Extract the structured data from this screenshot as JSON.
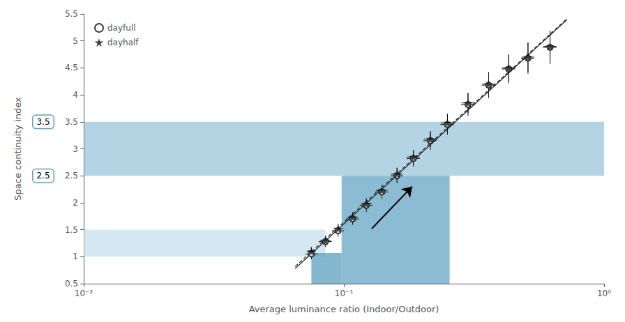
{
  "chart_data": {
    "type": "scatter",
    "xlabel": "Average luminance ratio (Indoor/Outdoor)",
    "ylabel": "Space continuity index",
    "log": "x",
    "xlim": [
      0.01,
      1
    ],
    "xticks": [
      {
        "value": 0.01,
        "label": "10⁻²"
      },
      {
        "value": 0.1,
        "label": "10⁻¹"
      },
      {
        "value": 1,
        "label": "10⁰"
      }
    ],
    "ylim": [
      0.5,
      5.5
    ],
    "yticks": [
      0.5,
      1,
      1.5,
      2,
      2.5,
      3,
      3.5,
      4,
      4.5,
      5,
      5.5
    ],
    "grid": false,
    "legend": "upper left",
    "series": [
      {
        "name": "dayfull",
        "marker": "circle_open",
        "color": "#111111",
        "x": [
          0.075,
          0.085,
          0.095,
          0.108,
          0.122,
          0.14,
          0.16,
          0.185,
          0.215,
          0.25,
          0.3,
          0.36,
          0.43,
          0.51,
          0.62
        ],
        "values": [
          1.05,
          1.28,
          1.48,
          1.7,
          1.95,
          2.2,
          2.5,
          2.82,
          3.15,
          3.45,
          3.82,
          4.18,
          4.48,
          4.68,
          4.88
        ],
        "xerr": [
          0.004,
          0.005,
          0.005,
          0.006,
          0.007,
          0.008,
          0.009,
          0.011,
          0.013,
          0.015,
          0.018,
          0.022,
          0.026,
          0.03,
          0.038
        ],
        "yerr": [
          0.1,
          0.1,
          0.11,
          0.11,
          0.12,
          0.13,
          0.14,
          0.15,
          0.17,
          0.19,
          0.21,
          0.24,
          0.27,
          0.29,
          0.31
        ]
      },
      {
        "name": "dayhalf",
        "marker": "star",
        "color": "#111111",
        "x": [
          0.075,
          0.085,
          0.095,
          0.108,
          0.122,
          0.14,
          0.16,
          0.185,
          0.215,
          0.25,
          0.3,
          0.36,
          0.43,
          0.51,
          0.62
        ],
        "values": [
          1.1,
          1.3,
          1.52,
          1.73,
          1.98,
          2.23,
          2.53,
          2.85,
          3.18,
          3.48,
          3.85,
          4.2,
          4.5,
          4.7,
          4.9
        ],
        "xerr": [
          0.003,
          0.004,
          0.004,
          0.005,
          0.006,
          0.007,
          0.008,
          0.01,
          0.012,
          0.014,
          0.017,
          0.02,
          0.024,
          0.028,
          0.035
        ],
        "yerr": [
          0.08,
          0.09,
          0.09,
          0.1,
          0.1,
          0.11,
          0.12,
          0.13,
          0.15,
          0.17,
          0.19,
          0.22,
          0.25,
          0.27,
          0.29
        ]
      }
    ],
    "fit_lines": [
      {
        "line_style": "solid",
        "color": "#222222",
        "x": [
          0.065,
          0.72
        ],
        "values": [
          0.7816,
          5.3937
        ]
      },
      {
        "line_style": "dashed",
        "color": "#222222",
        "x": [
          0.065,
          0.72
        ],
        "values": [
          0.8195,
          5.4115
        ]
      }
    ],
    "shaded_regions": [
      {
        "x": [
          0.01,
          0.085
        ],
        "y": [
          1.0,
          1.5
        ],
        "color": "#b8d9ea"
      },
      {
        "x": [
          0.075,
          0.098
        ],
        "y": [
          0.5,
          1.07
        ],
        "color": "#5b9fc0"
      },
      {
        "x": [
          0.098,
          0.255
        ],
        "y": [
          0.5,
          2.5
        ],
        "color": "#5b9fc0"
      },
      {
        "x": [
          0.01,
          1.0
        ],
        "y": [
          2.5,
          3.5
        ],
        "color": "#5b9fc0"
      }
    ],
    "annotations": [
      {
        "text": "3.5",
        "y": 3.5,
        "color": "#5b9fc0"
      },
      {
        "text": "2.5",
        "y": 2.5,
        "color": "#5b9fc0"
      }
    ],
    "arrow": {
      "from": [
        0.128,
        1.52
      ],
      "to": [
        0.183,
        2.3
      ]
    }
  }
}
